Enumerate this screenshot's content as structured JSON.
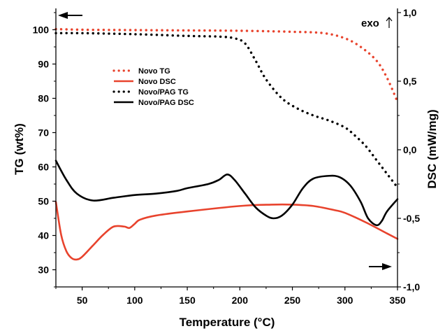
{
  "chart_data": {
    "type": "line",
    "xlabel": "Temperature (°C)",
    "ylabel_left": "TG (wt%)",
    "ylabel_right": "DSC (mW/mg)",
    "xlim": [
      25,
      350
    ],
    "ylim_left": [
      25,
      105
    ],
    "ylim_right": [
      -1.0,
      1.0
    ],
    "x_ticks": [
      50,
      100,
      150,
      200,
      250,
      300,
      350
    ],
    "y_left_ticks": [
      30,
      40,
      50,
      60,
      70,
      80,
      90,
      100
    ],
    "y_right_ticks": [
      -1.0,
      -0.5,
      0.0,
      0.5,
      1.0
    ],
    "x_tick_labels": [
      "50",
      "100",
      "150",
      "200",
      "250",
      "300",
      "350"
    ],
    "y_left_tick_labels": [
      "30",
      "40",
      "50",
      "60",
      "70",
      "80",
      "90",
      "100"
    ],
    "y_right_tick_labels": [
      "-1,0",
      "-0,5",
      "0,0",
      "0,5",
      "1,0"
    ],
    "annotation": "exo",
    "legend_position": "upper-left",
    "grid": false,
    "series": [
      {
        "name": "Novo TG",
        "axis": "left",
        "color": "#e8432d",
        "style": "dotted",
        "x": [
          25,
          50,
          100,
          150,
          200,
          250,
          280,
          300,
          315,
          330,
          340,
          350
        ],
        "y": [
          100.2,
          100.0,
          99.9,
          99.8,
          99.7,
          99.4,
          99.0,
          97.5,
          95.0,
          91.0,
          86.0,
          79.0
        ]
      },
      {
        "name": "Novo DSC",
        "axis": "right",
        "color": "#e8432d",
        "style": "solid",
        "x": [
          25,
          30,
          35,
          40,
          45,
          50,
          60,
          70,
          80,
          90,
          95,
          100,
          105,
          120,
          150,
          200,
          230,
          250,
          270,
          290,
          300,
          320,
          340,
          350
        ],
        "y": [
          -0.38,
          -0.62,
          -0.74,
          -0.79,
          -0.8,
          -0.78,
          -0.7,
          -0.62,
          -0.56,
          -0.56,
          -0.57,
          -0.54,
          -0.51,
          -0.48,
          -0.45,
          -0.41,
          -0.4,
          -0.4,
          -0.41,
          -0.44,
          -0.46,
          -0.53,
          -0.61,
          -0.65
        ]
      },
      {
        "name": "Novo/PAG TG",
        "axis": "left",
        "color": "#000000",
        "style": "dotted",
        "x": [
          25,
          50,
          100,
          150,
          180,
          195,
          205,
          215,
          225,
          240,
          255,
          270,
          285,
          300,
          310,
          320,
          330,
          340,
          350
        ],
        "y": [
          99.0,
          99.0,
          98.7,
          98.2,
          98.0,
          97.5,
          96.0,
          91.0,
          85.5,
          80.0,
          77.0,
          75.0,
          73.5,
          71.5,
          69.0,
          66.0,
          62.0,
          58.0,
          54.0
        ]
      },
      {
        "name": "Novo/PAG DSC",
        "axis": "right",
        "color": "#000000",
        "style": "solid",
        "x": [
          25,
          35,
          45,
          60,
          80,
          100,
          120,
          140,
          150,
          170,
          180,
          188,
          195,
          205,
          215,
          225,
          232,
          240,
          250,
          260,
          270,
          285,
          295,
          305,
          315,
          322,
          330,
          335,
          340,
          350
        ],
        "y": [
          -0.08,
          -0.22,
          -0.32,
          -0.37,
          -0.35,
          -0.33,
          -0.32,
          -0.3,
          -0.28,
          -0.25,
          -0.22,
          -0.18,
          -0.22,
          -0.32,
          -0.42,
          -0.48,
          -0.5,
          -0.48,
          -0.4,
          -0.28,
          -0.21,
          -0.19,
          -0.2,
          -0.26,
          -0.38,
          -0.5,
          -0.55,
          -0.52,
          -0.45,
          -0.36
        ]
      }
    ]
  }
}
